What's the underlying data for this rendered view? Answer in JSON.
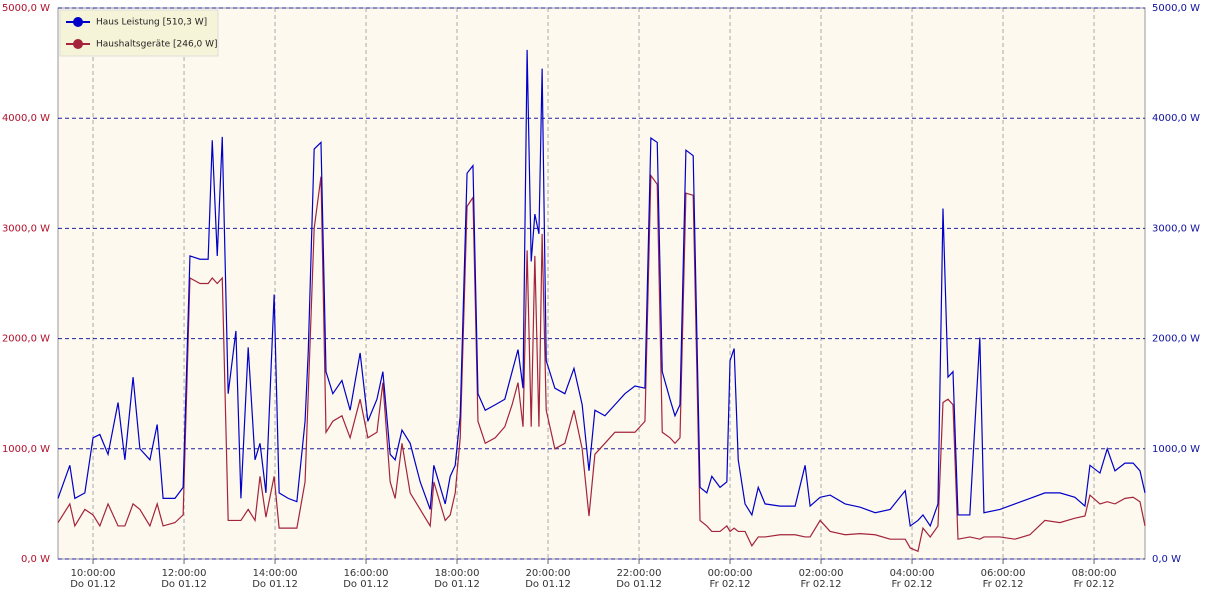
{
  "chart_data": {
    "type": "line",
    "x": [
      9.23,
      9.49,
      9.6,
      9.82,
      10.0,
      10.15,
      10.33,
      10.55,
      10.7,
      10.88,
      11.03,
      11.25,
      11.41,
      11.54,
      11.8,
      11.98,
      12.13,
      12.35,
      12.53,
      12.62,
      12.73,
      12.84,
      12.97,
      13.14,
      13.25,
      13.41,
      13.56,
      13.67,
      13.8,
      13.98,
      14.09,
      14.29,
      14.48,
      14.66,
      14.73,
      14.86,
      15.01,
      15.12,
      15.27,
      15.47,
      15.65,
      15.87,
      16.04,
      16.24,
      16.37,
      16.53,
      16.64,
      16.79,
      16.97,
      17.19,
      17.41,
      17.49,
      17.74,
      17.85,
      17.96,
      18.07,
      18.22,
      18.35,
      18.46,
      18.62,
      18.84,
      19.05,
      19.21,
      19.34,
      19.45,
      19.54,
      19.63,
      19.71,
      19.8,
      19.87,
      19.96,
      20.15,
      20.37,
      20.57,
      20.75,
      20.9,
      21.03,
      21.25,
      21.47,
      21.69,
      21.91,
      22.13,
      22.26,
      22.4,
      22.51,
      22.68,
      22.79,
      22.9,
      23.03,
      23.19,
      23.34,
      23.49,
      23.6,
      23.78,
      23.93,
      24.0,
      24.09,
      24.18,
      24.33,
      24.48,
      24.62,
      24.77,
      25.1,
      25.43,
      25.65,
      25.76,
      25.98,
      26.2,
      26.53,
      26.86,
      27.19,
      27.52,
      27.85,
      27.96,
      28.13,
      28.24,
      28.4,
      28.57,
      28.68,
      28.79,
      28.9,
      29.01,
      29.27,
      29.49,
      29.58,
      29.93,
      30.26,
      30.59,
      30.92,
      31.25,
      31.58,
      31.8,
      31.91,
      32.13,
      32.29,
      32.46,
      32.68,
      32.86,
      33.01,
      33.12
    ],
    "xlim": [
      9.23,
      33.12
    ],
    "xticks": [
      {
        "value": 10,
        "label": "10:00:00",
        "date": "Do 01.12"
      },
      {
        "value": 12,
        "label": "12:00:00",
        "date": "Do 01.12"
      },
      {
        "value": 14,
        "label": "14:00:00",
        "date": "Do 01.12"
      },
      {
        "value": 16,
        "label": "16:00:00",
        "date": "Do 01.12"
      },
      {
        "value": 18,
        "label": "18:00:00",
        "date": "Do 01.12"
      },
      {
        "value": 20,
        "label": "20:00:00",
        "date": "Do 01.12"
      },
      {
        "value": 22,
        "label": "22:00:00",
        "date": "Do 01.12"
      },
      {
        "value": 24,
        "label": "00:00:00",
        "date": "Fr 02.12"
      },
      {
        "value": 26,
        "label": "02:00:00",
        "date": "Fr 02.12"
      },
      {
        "value": 28,
        "label": "04:00:00",
        "date": "Fr 02.12"
      },
      {
        "value": 30,
        "label": "06:00:00",
        "date": "Fr 02.12"
      },
      {
        "value": 32,
        "label": "08:00:00",
        "date": "Fr 02.12"
      }
    ],
    "ylim": [
      0,
      5000
    ],
    "yticks": [
      {
        "value": 0,
        "label": "0,0 W"
      },
      {
        "value": 1000,
        "label": "1000,0 W"
      },
      {
        "value": 2000,
        "label": "2000,0 W"
      },
      {
        "value": 3000,
        "label": "3000,0 W"
      },
      {
        "value": 4000,
        "label": "4000,0 W"
      },
      {
        "value": 5000,
        "label": "5000,0 W"
      }
    ],
    "y2lim": [
      0,
      5000
    ],
    "y2ticks": [
      {
        "value": 0,
        "label": "0,0 W"
      },
      {
        "value": 1000,
        "label": "1000,0 W"
      },
      {
        "value": 2000,
        "label": "2000,0 W"
      },
      {
        "value": 3000,
        "label": "3000,0 W"
      },
      {
        "value": 4000,
        "label": "4000,0 W"
      },
      {
        "value": 5000,
        "label": "5000,0 W"
      }
    ],
    "grid": true,
    "legend": "upper left",
    "series": [
      {
        "name": "Haus Leistung [510,3 W]",
        "color": "#0000c8",
        "axis": "y2",
        "values": [
          550,
          850,
          550,
          600,
          1100,
          1130,
          950,
          1420,
          900,
          1650,
          1000,
          900,
          1220,
          550,
          550,
          650,
          2750,
          2720,
          2720,
          3800,
          2750,
          3830,
          1500,
          2070,
          550,
          1920,
          900,
          1050,
          600,
          2400,
          600,
          550,
          520,
          1250,
          1880,
          3720,
          3780,
          1700,
          1500,
          1620,
          1350,
          1870,
          1250,
          1450,
          1700,
          950,
          900,
          1170,
          1050,
          700,
          450,
          850,
          500,
          750,
          850,
          1300,
          3500,
          3570,
          1500,
          1350,
          1400,
          1450,
          1700,
          1900,
          1550,
          4620,
          2700,
          3130,
          2950,
          4450,
          1800,
          1550,
          1500,
          1730,
          1400,
          800,
          1350,
          1300,
          1400,
          1500,
          1570,
          1550,
          3820,
          3780,
          1700,
          1450,
          1300,
          1400,
          3710,
          3660,
          650,
          600,
          750,
          650,
          700,
          1800,
          1910,
          900,
          500,
          400,
          650,
          500,
          480,
          480,
          850,
          480,
          560,
          580,
          500,
          470,
          420,
          450,
          620,
          300,
          350,
          400,
          300,
          500,
          3180,
          1650,
          1700,
          400,
          400,
          2010,
          420,
          450,
          500,
          550,
          600,
          600,
          560,
          480,
          850,
          780,
          1000,
          800,
          870,
          870,
          800,
          600
        ]
      },
      {
        "name": "Haushaltsgeräte [246,0  W]",
        "color": "#a3243b",
        "values": [
          330,
          500,
          300,
          450,
          400,
          300,
          500,
          300,
          300,
          500,
          450,
          300,
          500,
          300,
          330,
          400,
          2550,
          2500,
          2500,
          2550,
          2500,
          2550,
          350,
          350,
          350,
          450,
          350,
          750,
          380,
          750,
          280,
          280,
          280,
          700,
          1500,
          3000,
          3470,
          1150,
          1250,
          1300,
          1100,
          1450,
          1100,
          1150,
          1600,
          700,
          550,
          1050,
          600,
          450,
          300,
          700,
          350,
          400,
          600,
          1100,
          3200,
          3280,
          1250,
          1050,
          1100,
          1200,
          1400,
          1600,
          1200,
          2800,
          1200,
          2750,
          1200,
          2950,
          1350,
          1000,
          1050,
          1350,
          1000,
          390,
          950,
          1050,
          1150,
          1150,
          1150,
          1250,
          3480,
          3400,
          1150,
          1100,
          1050,
          1100,
          3320,
          3300,
          350,
          300,
          250,
          250,
          300,
          250,
          280,
          250,
          250,
          120,
          200,
          200,
          220,
          220,
          200,
          200,
          350,
          250,
          220,
          230,
          220,
          180,
          180,
          100,
          70,
          280,
          200,
          300,
          1420,
          1450,
          1400,
          180,
          200,
          180,
          200,
          200,
          180,
          220,
          350,
          330,
          370,
          390,
          580,
          500,
          520,
          500,
          550,
          560,
          520,
          300
        ]
      }
    ]
  }
}
